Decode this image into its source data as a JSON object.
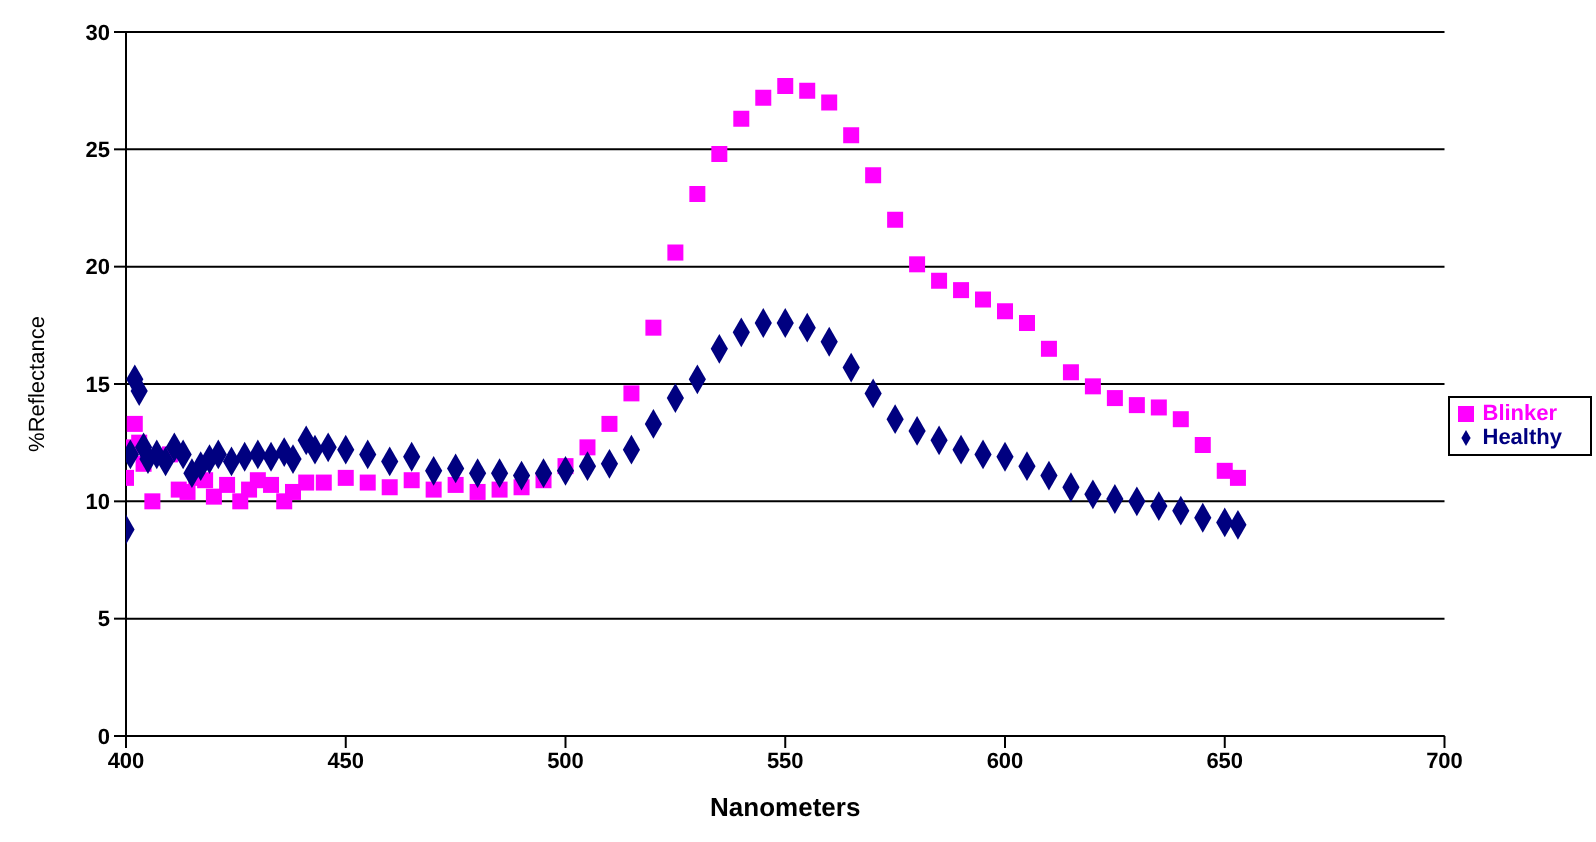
{
  "chart_data": {
    "type": "scatter",
    "xlabel": "Nanometers",
    "ylabel": "%Reflectance",
    "xlim": [
      400,
      700
    ],
    "xticks": [
      400,
      450,
      500,
      550,
      600,
      650,
      700
    ],
    "ylim": [
      0,
      30
    ],
    "yticks": [
      0,
      5,
      10,
      15,
      20,
      25,
      30
    ],
    "grid": "y",
    "legend": "right",
    "series": [
      {
        "name": "Blinker",
        "color": "#ff00ff",
        "marker": "square",
        "x": [
          400,
          401,
          402,
          403,
          404,
          406,
          410,
          412,
          414,
          416,
          418,
          420,
          423,
          426,
          428,
          430,
          433,
          436,
          438,
          441,
          445,
          450,
          455,
          460,
          465,
          470,
          475,
          480,
          485,
          490,
          495,
          500,
          505,
          510,
          515,
          520,
          525,
          530,
          535,
          540,
          545,
          550,
          555,
          560,
          565,
          570,
          575,
          580,
          585,
          590,
          595,
          600,
          605,
          610,
          615,
          620,
          625,
          630,
          635,
          640,
          645,
          650,
          653
        ],
        "values": [
          11.0,
          12.3,
          13.3,
          12.5,
          11.6,
          10.0,
          12.0,
          10.5,
          10.4,
          11.0,
          10.9,
          10.2,
          10.7,
          10.0,
          10.5,
          10.9,
          10.7,
          10.0,
          10.4,
          10.8,
          10.8,
          11.0,
          10.8,
          10.6,
          10.9,
          10.5,
          10.7,
          10.4,
          10.5,
          10.6,
          10.9,
          11.5,
          12.3,
          13.3,
          14.6,
          17.4,
          20.6,
          23.1,
          24.8,
          26.3,
          27.2,
          27.7,
          27.5,
          27.0,
          25.6,
          23.9,
          22.0,
          20.1,
          19.4,
          19.0,
          18.6,
          18.1,
          17.6,
          16.5,
          15.5,
          14.9,
          14.4,
          14.1,
          14.0,
          13.5,
          12.4,
          11.3,
          11.0
        ]
      },
      {
        "name": "Healthy",
        "color": "#000080",
        "marker": "diamond",
        "x": [
          400,
          401,
          402,
          403,
          404,
          405,
          407,
          409,
          411,
          413,
          415,
          417,
          419,
          421,
          424,
          427,
          430,
          433,
          436,
          438,
          441,
          443,
          446,
          450,
          455,
          460,
          465,
          470,
          475,
          480,
          485,
          490,
          495,
          500,
          505,
          510,
          515,
          520,
          525,
          530,
          535,
          540,
          545,
          550,
          555,
          560,
          565,
          570,
          575,
          580,
          585,
          590,
          595,
          600,
          605,
          610,
          615,
          620,
          625,
          630,
          635,
          640,
          645,
          650,
          653
        ],
        "values": [
          8.8,
          12.0,
          15.2,
          14.7,
          12.3,
          11.8,
          12.0,
          11.7,
          12.3,
          12.0,
          11.2,
          11.5,
          11.8,
          12.0,
          11.7,
          11.9,
          12.0,
          11.9,
          12.1,
          11.8,
          12.6,
          12.2,
          12.3,
          12.2,
          12.0,
          11.7,
          11.9,
          11.3,
          11.4,
          11.2,
          11.2,
          11.1,
          11.2,
          11.3,
          11.5,
          11.6,
          12.2,
          13.3,
          14.4,
          15.2,
          16.5,
          17.2,
          17.6,
          17.6,
          17.4,
          16.8,
          15.7,
          14.6,
          13.5,
          13.0,
          12.6,
          12.2,
          12.0,
          11.9,
          11.5,
          11.1,
          10.6,
          10.3,
          10.1,
          10.0,
          9.8,
          9.6,
          9.3,
          9.1,
          9.0
        ]
      }
    ]
  }
}
